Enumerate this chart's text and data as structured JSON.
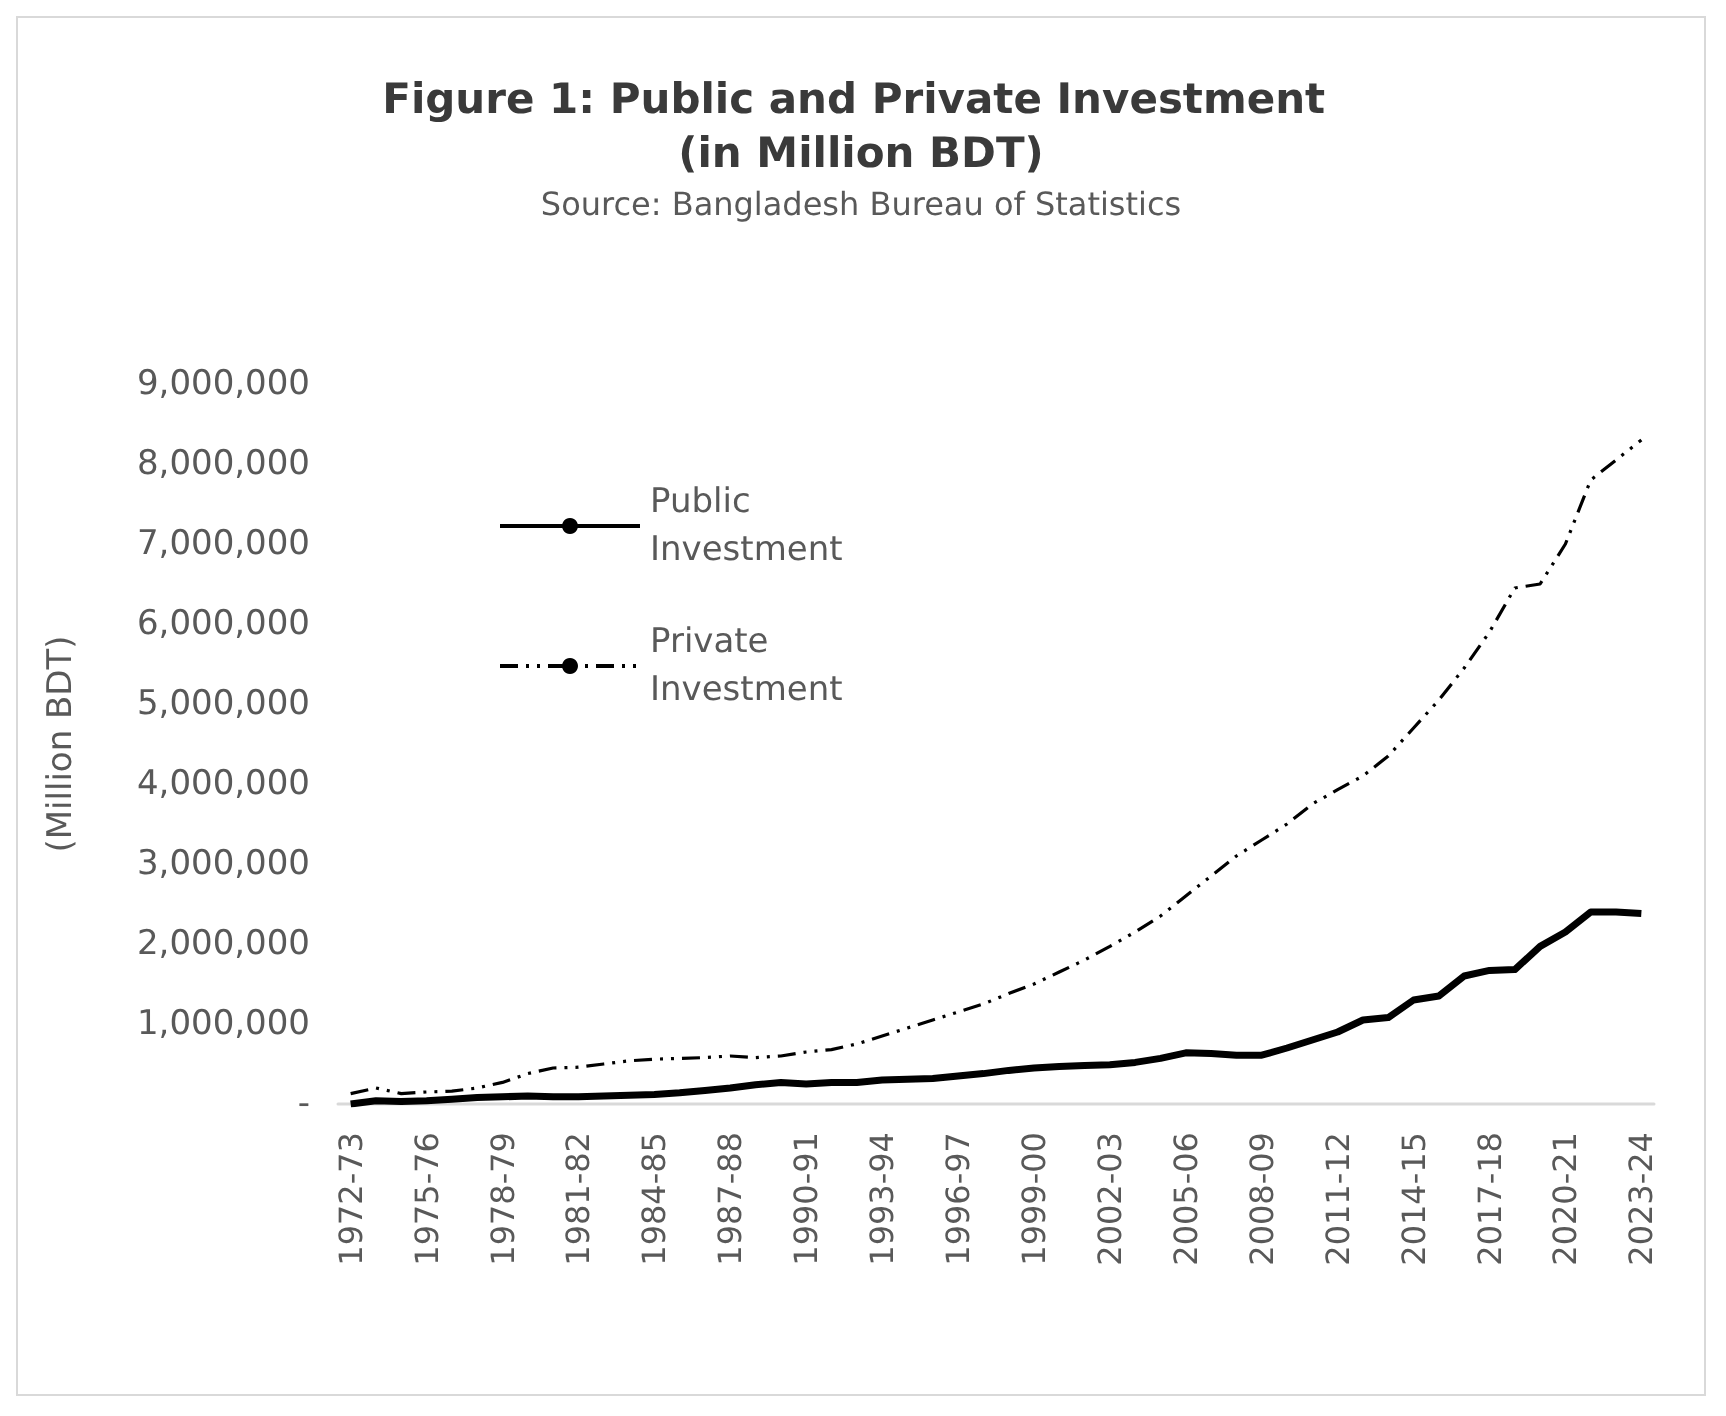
{
  "chart_data": {
    "type": "line",
    "title": "Figure 1: Public and Private Investment (in Million BDT)",
    "subtitle": "Source: Bangladesh Bureau of Statistics",
    "ylabel": "(Million BDT)",
    "categories": [
      "1972-73",
      null,
      null,
      "1975-76",
      null,
      null,
      "1978-79",
      null,
      null,
      "1981-82",
      null,
      null,
      "1984-85",
      null,
      null,
      "1987-88",
      null,
      null,
      "1990-91",
      null,
      null,
      "1993-94",
      null,
      null,
      "1996-97",
      null,
      null,
      "1999-00",
      null,
      null,
      "2002-03",
      null,
      null,
      "2005-06",
      null,
      null,
      "2008-09",
      null,
      null,
      "2011-12",
      null,
      null,
      "2014-15",
      null,
      null,
      "2017-18",
      null,
      null,
      "2020-21",
      null,
      null,
      "2023-24"
    ],
    "series": [
      {
        "name": "Public Investment",
        "color": "#000000",
        "line_style": "solid",
        "values": [
          0,
          40000,
          30000,
          40000,
          60000,
          80000,
          90000,
          100000,
          90000,
          90000,
          100000,
          110000,
          120000,
          140000,
          170000,
          200000,
          240000,
          270000,
          250000,
          270000,
          270000,
          300000,
          310000,
          320000,
          350000,
          380000,
          420000,
          450000,
          470000,
          480000,
          490000,
          520000,
          570000,
          640000,
          630000,
          610000,
          610000,
          700000,
          800000,
          900000,
          1050000,
          1080000,
          1300000,
          1350000,
          1600000,
          1670000,
          1680000,
          1970000,
          2150000,
          2400000,
          2400000,
          2380000
        ]
      },
      {
        "name": "Private Investment",
        "color": "#000000",
        "line_style": "dashed",
        "values": [
          130000,
          200000,
          130000,
          150000,
          160000,
          200000,
          270000,
          380000,
          450000,
          460000,
          500000,
          540000,
          560000,
          570000,
          580000,
          600000,
          580000,
          600000,
          650000,
          680000,
          750000,
          850000,
          950000,
          1050000,
          1150000,
          1250000,
          1380000,
          1500000,
          1650000,
          1800000,
          1970000,
          2150000,
          2350000,
          2600000,
          2850000,
          3100000,
          3300000,
          3500000,
          3750000,
          3930000,
          4100000,
          4350000,
          4700000,
          5050000,
          5450000,
          5900000,
          6450000,
          6500000,
          7000000,
          7800000,
          8050000,
          8300000
        ]
      }
    ],
    "ylim": [
      0,
      9000000
    ],
    "yticks": [
      {
        "value": 0,
        "label": "-"
      },
      {
        "value": 1000000,
        "label": "1,000,000"
      },
      {
        "value": 2000000,
        "label": "2,000,000"
      },
      {
        "value": 3000000,
        "label": "3,000,000"
      },
      {
        "value": 4000000,
        "label": "4,000,000"
      },
      {
        "value": 5000000,
        "label": "5,000,000"
      },
      {
        "value": 6000000,
        "label": "6,000,000"
      },
      {
        "value": 7000000,
        "label": "7,000,000"
      },
      {
        "value": 8000000,
        "label": "8,000,000"
      },
      {
        "value": 9000000,
        "label": "9,000,000"
      }
    ],
    "grid": false,
    "legend": "top left",
    "marker": "none"
  }
}
